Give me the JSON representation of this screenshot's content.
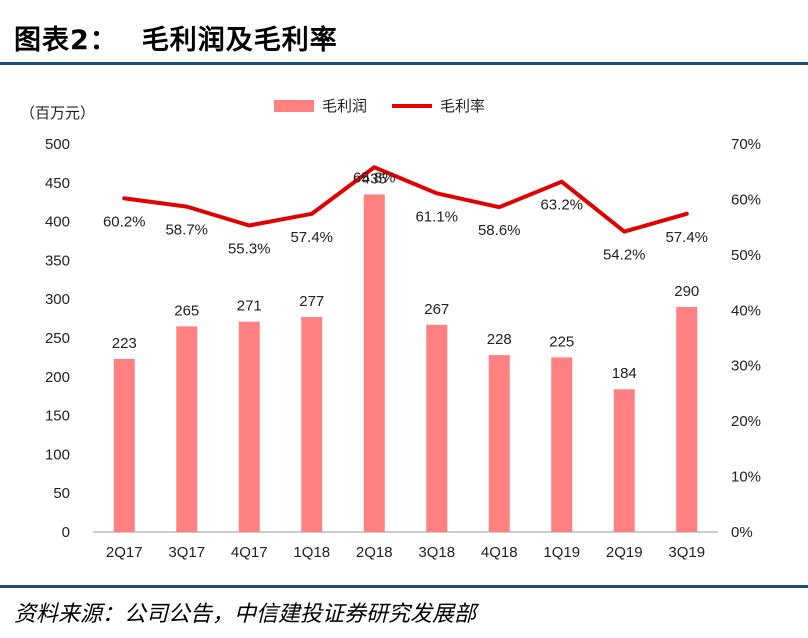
{
  "figure": {
    "number": "图表2：",
    "title": "毛利润及毛利率",
    "source": "资料来源：公司公告，中信建投证券研究发展部"
  },
  "chart_data": {
    "type": "bar",
    "categories": [
      "2Q17",
      "3Q17",
      "4Q17",
      "1Q18",
      "2Q18",
      "3Q18",
      "4Q18",
      "1Q19",
      "2Q19",
      "3Q19"
    ],
    "series": [
      {
        "name": "毛利润",
        "type": "bar",
        "axis": "left",
        "color": "#ff8080",
        "values": [
          223,
          265,
          271,
          277,
          435,
          267,
          228,
          225,
          184,
          290
        ]
      },
      {
        "name": "毛利率",
        "type": "line",
        "axis": "right",
        "color": "#e00000",
        "values": [
          60.2,
          58.7,
          55.3,
          57.4,
          65.8,
          61.1,
          58.6,
          63.2,
          54.2,
          57.4
        ],
        "labels": [
          "60.2%",
          "58.7%",
          "55.3%",
          "57.4%",
          "65.8%",
          "61.1%",
          "58.6%",
          "63.2%",
          "54.2%",
          "57.4%"
        ]
      }
    ],
    "left_axis": {
      "unit_label": "（百万元）",
      "ylim": [
        0,
        500
      ],
      "ticks": [
        "0",
        "50",
        "100",
        "150",
        "200",
        "250",
        "300",
        "350",
        "400",
        "450",
        "500"
      ]
    },
    "right_axis": {
      "ylim": [
        0,
        70
      ],
      "ticks": [
        "0%",
        "10%",
        "20%",
        "30%",
        "40%",
        "50%",
        "60%",
        "70%"
      ]
    },
    "grid": false,
    "legend_position": "top-center"
  }
}
